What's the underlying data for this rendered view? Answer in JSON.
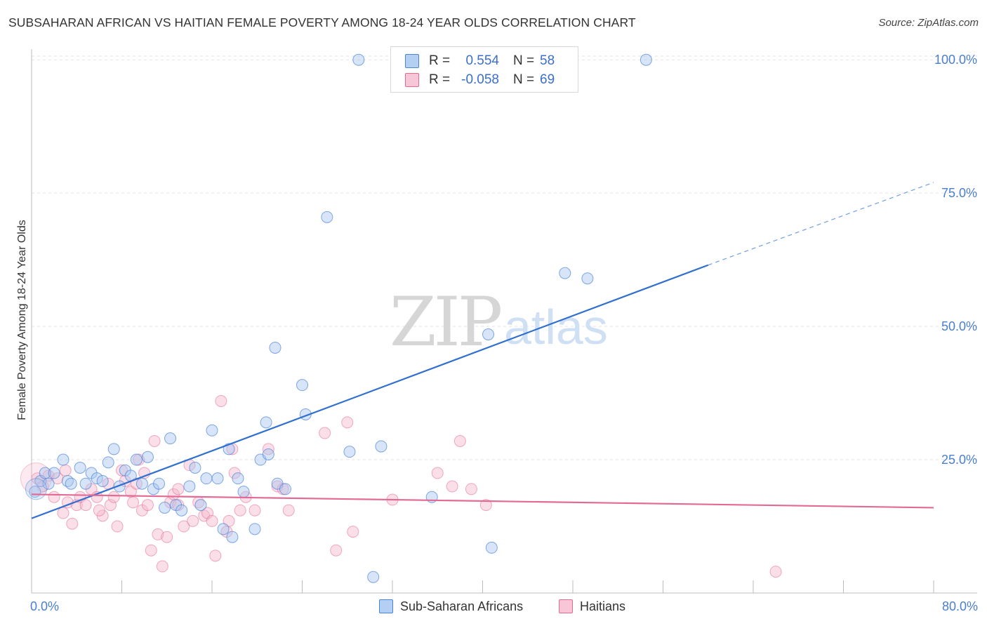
{
  "title": "SUBSAHARAN AFRICAN VS HAITIAN FEMALE POVERTY AMONG 18-24 YEAR OLDS CORRELATION CHART",
  "source": "Source: ZipAtlas.com",
  "colors": {
    "blue": "#4a85d8",
    "blue_fill": "#a9c6ef",
    "pink": "#e36a95",
    "pink_fill": "#f4b8cc",
    "axis_text": "#4a7fd0"
  },
  "legend": {
    "rows": [
      {
        "r_label": "R =",
        "r_value": "0.554",
        "n_label": "N =",
        "n_value": "58"
      },
      {
        "r_label": "R =",
        "r_value": "-0.058",
        "n_label": "N =",
        "n_value": "69"
      }
    ]
  },
  "bottom_legend": {
    "series1": "Sub-Saharan Africans",
    "series2": "Haitians"
  },
  "watermark": {
    "zip": "ZIP",
    "atlas": "atlas"
  },
  "chart_data": {
    "type": "scatter",
    "title": "SUBSAHARAN AFRICAN VS HAITIAN FEMALE POVERTY AMONG 18-24 YEAR OLDS CORRELATION CHART",
    "xlabel": "",
    "ylabel": "Female Poverty Among 18-24 Year Olds",
    "xlim": [
      0,
      80
    ],
    "ylim": [
      0,
      102
    ],
    "x_tick_labels": [
      {
        "value": 0,
        "label": "0.0%"
      },
      {
        "value": 80,
        "label": "80.0%"
      }
    ],
    "y_tick_labels": [
      {
        "value": 25,
        "label": "25.0%"
      },
      {
        "value": 50,
        "label": "50.0%"
      },
      {
        "value": 75,
        "label": "75.0%"
      },
      {
        "value": 100,
        "label": "100.0%"
      }
    ],
    "series": [
      {
        "name": "Sub-Saharan Africans",
        "r": 0.554,
        "n": 58,
        "trend": {
          "x0": 0,
          "y0": 14,
          "x1": 60,
          "y1": 61.5,
          "x_dash_end": 80,
          "y_dash_end": 77
        },
        "points": [
          [
            0.3,
            19
          ],
          [
            0.8,
            21
          ],
          [
            1.2,
            22.5
          ],
          [
            1.5,
            20.5
          ],
          [
            2.0,
            22.5
          ],
          [
            2.8,
            25
          ],
          [
            3.2,
            21
          ],
          [
            3.5,
            20.5
          ],
          [
            4.3,
            23.5
          ],
          [
            4.8,
            20.5
          ],
          [
            5.3,
            22.5
          ],
          [
            5.8,
            21.5
          ],
          [
            6.3,
            21
          ],
          [
            6.8,
            24.5
          ],
          [
            7.3,
            27
          ],
          [
            7.8,
            20
          ],
          [
            8.3,
            23
          ],
          [
            8.8,
            22
          ],
          [
            9.3,
            25
          ],
          [
            10.3,
            25.5
          ],
          [
            9.8,
            20.5
          ],
          [
            10.8,
            19.5
          ],
          [
            11.3,
            20.5
          ],
          [
            11.8,
            16
          ],
          [
            12.3,
            29
          ],
          [
            12.8,
            16.5
          ],
          [
            13.3,
            15.5
          ],
          [
            14.0,
            20
          ],
          [
            14.5,
            23.5
          ],
          [
            15.0,
            16.5
          ],
          [
            15.5,
            21.5
          ],
          [
            16.0,
            30.5
          ],
          [
            16.5,
            21.5
          ],
          [
            17.0,
            12
          ],
          [
            17.5,
            27
          ],
          [
            17.8,
            10.5
          ],
          [
            18.3,
            21.5
          ],
          [
            18.8,
            19
          ],
          [
            19.8,
            12
          ],
          [
            20.3,
            25
          ],
          [
            20.8,
            32
          ],
          [
            21.0,
            26
          ],
          [
            21.6,
            46
          ],
          [
            21.8,
            20.5
          ],
          [
            22.5,
            19.5
          ],
          [
            24.0,
            39
          ],
          [
            24.3,
            33.5
          ],
          [
            26.2,
            70.5
          ],
          [
            28.2,
            26.5
          ],
          [
            29.0,
            100
          ],
          [
            31.0,
            27.5
          ],
          [
            30.3,
            3
          ],
          [
            35.5,
            18
          ],
          [
            40.5,
            48.5
          ],
          [
            40.8,
            8.5
          ],
          [
            47.3,
            60
          ],
          [
            49.3,
            59
          ],
          [
            54.5,
            100
          ]
        ]
      },
      {
        "name": "Haitians",
        "r": -0.058,
        "n": 69,
        "trend": {
          "x0": 0,
          "y0": 18.5,
          "x1": 80,
          "y1": 16
        },
        "points": [
          [
            0.5,
            21.5
          ],
          [
            1.0,
            20
          ],
          [
            1.5,
            22
          ],
          [
            2.0,
            18
          ],
          [
            2.3,
            21.5
          ],
          [
            2.8,
            15
          ],
          [
            3.2,
            17
          ],
          [
            3.6,
            13
          ],
          [
            4.0,
            16.5
          ],
          [
            4.3,
            18
          ],
          [
            4.8,
            16.5
          ],
          [
            5.3,
            19.5
          ],
          [
            5.8,
            18
          ],
          [
            6.3,
            14.5
          ],
          [
            6.8,
            20.5
          ],
          [
            7.0,
            16.5
          ],
          [
            7.3,
            18
          ],
          [
            7.6,
            12.5
          ],
          [
            8.0,
            23
          ],
          [
            8.3,
            21
          ],
          [
            8.8,
            19
          ],
          [
            9.0,
            17
          ],
          [
            9.3,
            20.5
          ],
          [
            9.8,
            15.5
          ],
          [
            10.0,
            22.5
          ],
          [
            10.3,
            16.5
          ],
          [
            10.6,
            8
          ],
          [
            10.9,
            28.5
          ],
          [
            11.2,
            11
          ],
          [
            11.6,
            5
          ],
          [
            12.0,
            10.5
          ],
          [
            12.3,
            17
          ],
          [
            12.6,
            18.5
          ],
          [
            13.0,
            16.5
          ],
          [
            13.5,
            12.5
          ],
          [
            14.0,
            24
          ],
          [
            14.3,
            13.5
          ],
          [
            14.8,
            17
          ],
          [
            15.3,
            14.5
          ],
          [
            15.6,
            15
          ],
          [
            16.0,
            13.5
          ],
          [
            16.3,
            7
          ],
          [
            16.8,
            36
          ],
          [
            17.3,
            11.5
          ],
          [
            17.5,
            13.5
          ],
          [
            17.8,
            27
          ],
          [
            18.0,
            22.5
          ],
          [
            18.5,
            15.5
          ],
          [
            19.0,
            18
          ],
          [
            19.8,
            15.5
          ],
          [
            21.0,
            27
          ],
          [
            21.8,
            20
          ],
          [
            22.3,
            19.5
          ],
          [
            22.8,
            15.5
          ],
          [
            26.0,
            30
          ],
          [
            27.0,
            8
          ],
          [
            28.0,
            32
          ],
          [
            28.5,
            11.5
          ],
          [
            32.0,
            17.5
          ],
          [
            36.0,
            22.5
          ],
          [
            37.3,
            20
          ],
          [
            38.0,
            28.5
          ],
          [
            39.0,
            19.5
          ],
          [
            40.3,
            16.5
          ],
          [
            66.0,
            4
          ],
          [
            3.0,
            23
          ],
          [
            6.0,
            15.5
          ],
          [
            9.5,
            25
          ],
          [
            13.0,
            19.5
          ]
        ]
      }
    ],
    "grid": true,
    "legend_position": "top-center"
  }
}
